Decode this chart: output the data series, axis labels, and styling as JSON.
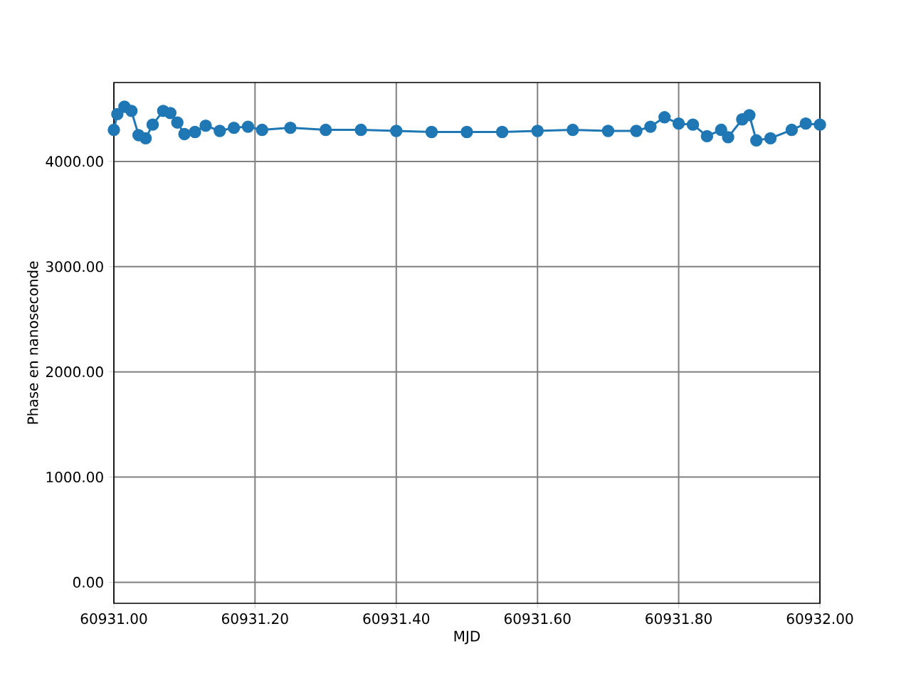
{
  "chart_data": {
    "type": "line",
    "xlabel": "MJD",
    "ylabel": "Phase en nanoseconde",
    "x": [
      60931.0,
      60931.005,
      60931.015,
      60931.025,
      60931.035,
      60931.045,
      60931.055,
      60931.07,
      60931.08,
      60931.09,
      60931.1,
      60931.115,
      60931.13,
      60931.15,
      60931.17,
      60931.19,
      60931.21,
      60931.25,
      60931.3,
      60931.35,
      60931.4,
      60931.45,
      60931.5,
      60931.55,
      60931.6,
      60931.65,
      60931.7,
      60931.74,
      60931.76,
      60931.78,
      60931.8,
      60931.82,
      60931.84,
      60931.86,
      60931.87,
      60931.89,
      60931.9,
      60931.91,
      60931.93,
      60931.96,
      60931.98,
      60932.0
    ],
    "series": [
      {
        "color": "#1f77b4",
        "values": [
          4300,
          4450,
          4520,
          4480,
          4250,
          4220,
          4350,
          4480,
          4460,
          4370,
          4260,
          4280,
          4340,
          4290,
          4320,
          4330,
          4300,
          4320,
          4300,
          4300,
          4290,
          4280,
          4280,
          4280,
          4290,
          4300,
          4290,
          4290,
          4330,
          4420,
          4360,
          4350,
          4240,
          4300,
          4230,
          4400,
          4440,
          4200,
          4220,
          4300,
          4360,
          4350
        ]
      }
    ],
    "xlim": [
      60931.0,
      60932.0
    ],
    "ylim": [
      -200,
      4750
    ],
    "xticks": [
      {
        "value": 60931.0,
        "label": "60931.00"
      },
      {
        "value": 60931.2,
        "label": "60931.20"
      },
      {
        "value": 60931.4,
        "label": "60931.40"
      },
      {
        "value": 60931.6,
        "label": "60931.60"
      },
      {
        "value": 60931.8,
        "label": "60931.80"
      },
      {
        "value": 60932.0,
        "label": "60932.00"
      }
    ],
    "yticks": [
      {
        "value": 0,
        "label": "0.00"
      },
      {
        "value": 1000,
        "label": "1000.00"
      },
      {
        "value": 2000,
        "label": "2000.00"
      },
      {
        "value": 3000,
        "label": "3000.00"
      },
      {
        "value": 4000,
        "label": "4000.00"
      }
    ],
    "grid": true,
    "marker": "circle",
    "line_style": "solid"
  }
}
